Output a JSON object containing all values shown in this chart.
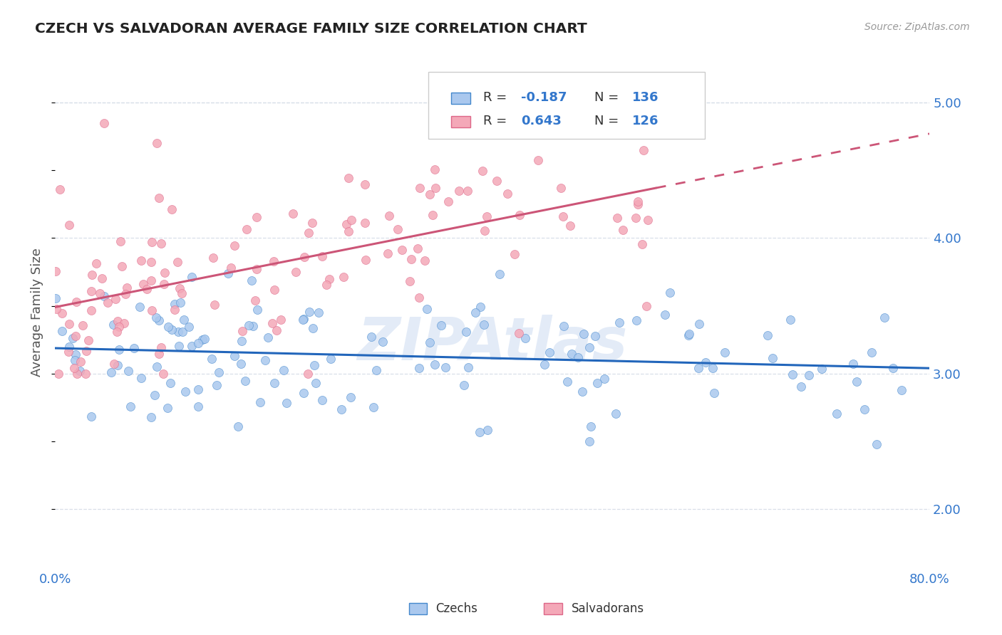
{
  "title": "CZECH VS SALVADORAN AVERAGE FAMILY SIZE CORRELATION CHART",
  "source": "Source: ZipAtlas.com",
  "ylabel": "Average Family Size",
  "xmin": 0.0,
  "xmax": 0.8,
  "ymin": 1.55,
  "ymax": 5.35,
  "yticks": [
    2.0,
    3.0,
    4.0,
    5.0
  ],
  "czech_R": -0.187,
  "czech_N": 136,
  "salvadoran_R": 0.643,
  "salvadoran_N": 126,
  "czech_fill": "#aac8ee",
  "salvadoran_fill": "#f4a8b8",
  "czech_edge": "#4488cc",
  "salvadoran_edge": "#dd6688",
  "czech_line_color": "#2266bb",
  "salvadoran_line_color": "#cc5577",
  "watermark_color": "#c8d8f0",
  "background_color": "#ffffff",
  "grid_color": "#d8dfe8",
  "legend_blue": "#3377cc",
  "title_color": "#222222",
  "ylabel_color": "#555555",
  "tick_color": "#3377cc",
  "source_color": "#999999"
}
